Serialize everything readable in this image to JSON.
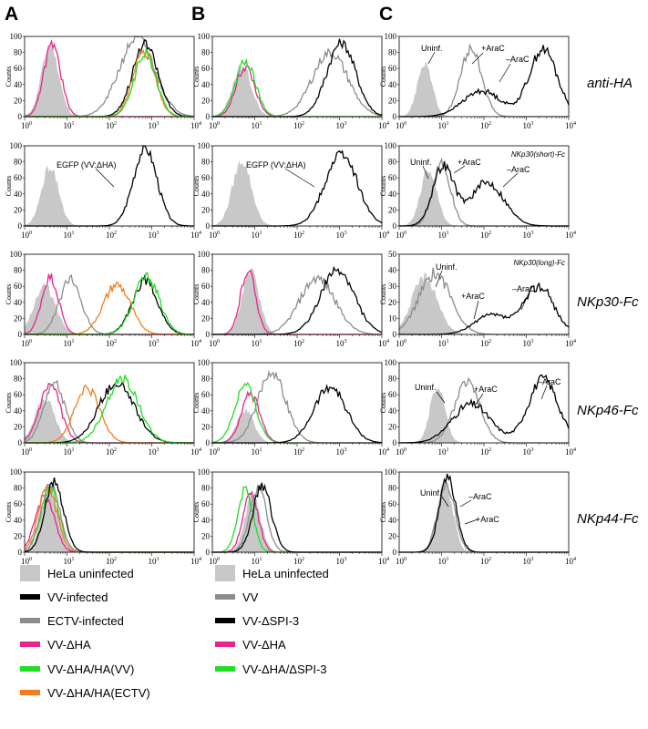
{
  "figure": {
    "panel_letters": [
      "A",
      "B",
      "C"
    ],
    "row_labels": [
      "anti-HA",
      "",
      "NKp30-Fc",
      "NKp46-Fc",
      "NKp44-Fc"
    ],
    "y_axis_label": "Counts",
    "x_tick_labels": [
      "10",
      "10",
      "10",
      "10",
      "10"
    ],
    "x_tick_exponents": [
      "0",
      "1",
      "2",
      "3",
      "4"
    ],
    "inset_labels": {
      "C2": "NKp30(short)-Fc",
      "C3": "NKp30(long)-Fc"
    }
  },
  "colors": {
    "uninfected": "#c8c8c8",
    "vv": "#000000",
    "ectv": "#8c8c8c",
    "vv_dha": "#e6268c",
    "vv_dha_ha_vv": "#22dd22",
    "vv_dha_ha_ectv": "#f47c1c",
    "vv_b": "#8c8c8c",
    "vv_dspi3": "#000000"
  },
  "legend_a": [
    {
      "label": "HeLa uninfected",
      "color": "#c8c8c8"
    },
    {
      "label": "VV-infected",
      "color": "#000000"
    },
    {
      "label": "ECTV-infected",
      "color": "#8c8c8c"
    },
    {
      "label": "VV-ΔHA",
      "color": "#e6268c"
    },
    {
      "label": "VV-ΔHA/HA(VV)",
      "color": "#22dd22"
    },
    {
      "label": "VV-ΔHA/HA(ECTV)",
      "color": "#f47c1c"
    }
  ],
  "legend_b": [
    {
      "label": "HeLa uninfected",
      "color": "#c8c8c8"
    },
    {
      "label": "VV",
      "color": "#8c8c8c"
    },
    {
      "label": "VV-ΔSPI-3",
      "color": "#000000"
    },
    {
      "label": "VV-ΔHA",
      "color": "#e6268c"
    },
    {
      "label": "VV-ΔHA/ΔSPI-3",
      "color": "#22dd22"
    }
  ],
  "annotations": [
    {
      "id": "A2-egfp",
      "text": "EGFP (VV:ΔHA)"
    },
    {
      "id": "B2-egfp",
      "text": "EGFP (VV:ΔHA)"
    },
    {
      "id": "C1-uninf",
      "text": "Uninf."
    },
    {
      "id": "C1-arac-plus",
      "text": "+AraC"
    },
    {
      "id": "C1-arac-minus",
      "text": "–AraC"
    },
    {
      "id": "C2-uninf",
      "text": "Uninf."
    },
    {
      "id": "C2-arac-plus",
      "text": "+AraC"
    },
    {
      "id": "C2-arac-minus",
      "text": "–AraC"
    },
    {
      "id": "C3-uninf",
      "text": "Uninf."
    },
    {
      "id": "C3-arac-plus",
      "text": "+AraC"
    },
    {
      "id": "C3-arac-minus",
      "text": "–AraC"
    },
    {
      "id": "C4-uninf",
      "text": "Uninf."
    },
    {
      "id": "C4-arac-plus",
      "text": "+AraC"
    },
    {
      "id": "C4-arac-minus",
      "text": "–AraC"
    },
    {
      "id": "C5-uninf",
      "text": "Uninf."
    },
    {
      "id": "C5-arac-minus",
      "text": "–AraC"
    },
    {
      "id": "C5-arac-plus",
      "text": "+AraC"
    }
  ],
  "chart_data": [
    {
      "id": "A1",
      "type": "area",
      "xscale": "log",
      "xlim": [
        1,
        10000
      ],
      "ylim": [
        0,
        100
      ],
      "yticks": [
        0,
        20,
        40,
        60,
        80,
        100
      ],
      "series": [
        {
          "key": "uninfected",
          "peak_x": 4,
          "width": 0.2,
          "peak": 88
        },
        {
          "key": "vv_dha",
          "peak_x": 4.5,
          "width": 0.2,
          "peak": 90
        },
        {
          "key": "ectv",
          "peak_x": 450,
          "width": 0.42,
          "peak": 98
        },
        {
          "key": "vv",
          "peak_x": 700,
          "width": 0.3,
          "peak": 90
        },
        {
          "key": "vv_dha_ha_ectv",
          "peak_x": 650,
          "width": 0.26,
          "peak": 82
        },
        {
          "key": "vv_dha_ha_vv",
          "peak_x": 700,
          "width": 0.26,
          "peak": 78
        }
      ]
    },
    {
      "id": "B1",
      "type": "area",
      "xscale": "log",
      "xlim": [
        1,
        10000
      ],
      "ylim": [
        0,
        100
      ],
      "yticks": [
        0,
        20,
        40,
        60,
        80,
        100
      ],
      "series": [
        {
          "key": "uninfected",
          "peak_x": 5,
          "width": 0.22,
          "peak": 62
        },
        {
          "key": "vv_dha",
          "peak_x": 6,
          "width": 0.22,
          "peak": 62
        },
        {
          "key": "vv_dha_ha_vv",
          "peak_x": 6,
          "width": 0.24,
          "peak": 68
        },
        {
          "key": "vv_b",
          "peak_x": 600,
          "width": 0.42,
          "peak": 80
        },
        {
          "key": "vv_dspi3",
          "peak_x": 1100,
          "width": 0.34,
          "peak": 92
        }
      ]
    },
    {
      "id": "C1",
      "type": "area",
      "xscale": "log",
      "xlim": [
        1,
        10000
      ],
      "ylim": [
        0,
        100
      ],
      "yticks": [
        0,
        20,
        40,
        60,
        80,
        100
      ],
      "series": [
        {
          "key": "uninfected",
          "peak_x": 4,
          "width": 0.17,
          "peak": 66
        },
        {
          "key": "vv_b",
          "peak_x": 50,
          "width": 0.25,
          "peak": 85
        },
        {
          "key": "vv",
          "peak_x": 2500,
          "width": 0.33,
          "peak": 84,
          "extra": {
            "x": 90,
            "peak": 32,
            "width": 0.45
          }
        }
      ]
    },
    {
      "id": "A2",
      "type": "area",
      "xscale": "log",
      "xlim": [
        1,
        10000
      ],
      "ylim": [
        0,
        100
      ],
      "yticks": [
        0,
        20,
        40,
        60,
        80,
        100
      ],
      "series": [
        {
          "key": "uninfected",
          "peak_x": 4,
          "width": 0.2,
          "peak": 73
        },
        {
          "key": "vv",
          "peak_x": 700,
          "width": 0.28,
          "peak": 97
        }
      ]
    },
    {
      "id": "B2",
      "type": "area",
      "xscale": "log",
      "xlim": [
        1,
        10000
      ],
      "ylim": [
        0,
        100
      ],
      "yticks": [
        0,
        20,
        40,
        60,
        80,
        100
      ],
      "series": [
        {
          "key": "uninfected",
          "peak_x": 5,
          "width": 0.22,
          "peak": 80
        },
        {
          "key": "vv",
          "peak_x": 1100,
          "width": 0.38,
          "peak": 90
        }
      ]
    },
    {
      "id": "C2",
      "type": "area",
      "xscale": "log",
      "xlim": [
        1,
        10000
      ],
      "ylim": [
        0,
        100
      ],
      "yticks": [
        0,
        20,
        40,
        60,
        80,
        100
      ],
      "series": [
        {
          "key": "uninfected",
          "peak_x": 5,
          "width": 0.19,
          "peak": 70
        },
        {
          "key": "vv_b",
          "peak_x": 10,
          "width": 0.21,
          "peak": 78
        },
        {
          "key": "vv",
          "peak_x": 11,
          "width": 0.25,
          "peak": 74,
          "extra": {
            "x": 120,
            "peak": 54,
            "width": 0.4
          }
        }
      ]
    },
    {
      "id": "A3",
      "type": "area",
      "xscale": "log",
      "xlim": [
        1,
        10000
      ],
      "ylim": [
        0,
        100
      ],
      "yticks": [
        0,
        20,
        40,
        60,
        80,
        100
      ],
      "series": [
        {
          "key": "uninfected",
          "peak_x": 3,
          "width": 0.25,
          "peak": 60
        },
        {
          "key": "vv_dha",
          "peak_x": 4,
          "width": 0.2,
          "peak": 72
        },
        {
          "key": "ectv",
          "peak_x": 12,
          "width": 0.26,
          "peak": 68
        },
        {
          "key": "vv_dha_ha_ectv",
          "peak_x": 150,
          "width": 0.32,
          "peak": 62
        },
        {
          "key": "vv",
          "peak_x": 700,
          "width": 0.3,
          "peak": 67
        },
        {
          "key": "vv_dha_ha_vv",
          "peak_x": 750,
          "width": 0.3,
          "peak": 72
        }
      ]
    },
    {
      "id": "B3",
      "type": "area",
      "xscale": "log",
      "xlim": [
        1,
        10000
      ],
      "ylim": [
        0,
        100
      ],
      "yticks": [
        0,
        20,
        40,
        60,
        80,
        100
      ],
      "series": [
        {
          "key": "uninfected",
          "peak_x": 8,
          "width": 0.2,
          "peak": 78
        },
        {
          "key": "vv_dha",
          "peak_x": 7,
          "width": 0.18,
          "peak": 80
        },
        {
          "key": "vv_b",
          "peak_x": 300,
          "width": 0.42,
          "peak": 70
        },
        {
          "key": "vv_dspi3",
          "peak_x": 900,
          "width": 0.4,
          "peak": 80
        }
      ]
    },
    {
      "id": "C3",
      "type": "area",
      "xscale": "log",
      "xlim": [
        1,
        10000
      ],
      "ylim": [
        0,
        50
      ],
      "yticks": [
        0,
        10,
        20,
        30,
        40,
        50
      ],
      "series": [
        {
          "key": "uninfected",
          "peak_x": 4,
          "width": 0.3,
          "peak": 35
        },
        {
          "key": "vv_b",
          "peak_x": 7,
          "width": 0.38,
          "peak": 38
        },
        {
          "key": "vv",
          "peak_x": 2000,
          "width": 0.35,
          "peak": 30,
          "extra": {
            "x": 150,
            "peak": 12,
            "width": 0.4
          }
        }
      ]
    },
    {
      "id": "A4",
      "type": "area",
      "xscale": "log",
      "xlim": [
        1,
        10000
      ],
      "ylim": [
        0,
        100
      ],
      "yticks": [
        0,
        20,
        40,
        60,
        80,
        100
      ],
      "series": [
        {
          "key": "uninfected",
          "peak_x": 3,
          "width": 0.23,
          "peak": 55
        },
        {
          "key": "vv_dha",
          "peak_x": 4,
          "width": 0.25,
          "peak": 70
        },
        {
          "key": "ectv",
          "peak_x": 5,
          "width": 0.25,
          "peak": 75
        },
        {
          "key": "vv_dha_ha_ectv",
          "peak_x": 30,
          "width": 0.3,
          "peak": 68
        },
        {
          "key": "vv",
          "peak_x": 150,
          "width": 0.42,
          "peak": 75
        },
        {
          "key": "vv_dha_ha_vv",
          "peak_x": 200,
          "width": 0.38,
          "peak": 80
        }
      ]
    },
    {
      "id": "B4",
      "type": "area",
      "xscale": "log",
      "xlim": [
        1,
        10000
      ],
      "ylim": [
        0,
        100
      ],
      "yticks": [
        0,
        20,
        40,
        60,
        80,
        100
      ],
      "series": [
        {
          "key": "uninfected",
          "peak_x": 6,
          "width": 0.2,
          "peak": 40
        },
        {
          "key": "vv_dha",
          "peak_x": 8,
          "width": 0.22,
          "peak": 60
        },
        {
          "key": "vv_dha_ha_vv",
          "peak_x": 6,
          "width": 0.25,
          "peak": 72
        },
        {
          "key": "vv_b",
          "peak_x": 25,
          "width": 0.33,
          "peak": 88
        },
        {
          "key": "vv_dspi3",
          "peak_x": 600,
          "width": 0.38,
          "peak": 70
        }
      ]
    },
    {
      "id": "C4",
      "type": "area",
      "xscale": "log",
      "xlim": [
        1,
        10000
      ],
      "ylim": [
        0,
        100
      ],
      "yticks": [
        0,
        20,
        40,
        60,
        80,
        100
      ],
      "series": [
        {
          "key": "uninfected",
          "peak_x": 8,
          "width": 0.17,
          "peak": 70
        },
        {
          "key": "vv_b",
          "peak_x": 40,
          "width": 0.3,
          "peak": 75
        },
        {
          "key": "vv",
          "peak_x": 2500,
          "width": 0.35,
          "peak": 80,
          "extra": {
            "x": 50,
            "peak": 48,
            "width": 0.45
          }
        }
      ]
    },
    {
      "id": "A5",
      "type": "area",
      "xscale": "log",
      "xlim": [
        1,
        10000
      ],
      "ylim": [
        0,
        100
      ],
      "yticks": [
        0,
        20,
        40,
        60,
        80,
        100
      ],
      "series": [
        {
          "key": "uninfected",
          "peak_x": 4,
          "width": 0.2,
          "peak": 80
        },
        {
          "key": "vv_dha",
          "peak_x": 3,
          "width": 0.22,
          "peak": 70
        },
        {
          "key": "vv_dha_ha_vv",
          "peak_x": 4,
          "width": 0.22,
          "peak": 78
        },
        {
          "key": "vv_dha_ha_ectv",
          "peak_x": 3.5,
          "width": 0.22,
          "peak": 82
        },
        {
          "key": "ectv",
          "peak_x": 4,
          "width": 0.22,
          "peak": 86
        },
        {
          "key": "vv",
          "peak_x": 5,
          "width": 0.22,
          "peak": 88
        }
      ]
    },
    {
      "id": "B5",
      "type": "area",
      "xscale": "log",
      "xlim": [
        1,
        10000
      ],
      "ylim": [
        0,
        100
      ],
      "yticks": [
        0,
        20,
        40,
        60,
        80,
        100
      ],
      "series": [
        {
          "key": "uninfected",
          "peak_x": 9,
          "width": 0.18,
          "peak": 70
        },
        {
          "key": "vv_dha",
          "peak_x": 8,
          "width": 0.18,
          "peak": 75
        },
        {
          "key": "vv_dha_ha_vv",
          "peak_x": 6,
          "width": 0.18,
          "peak": 78
        },
        {
          "key": "vv_b",
          "peak_x": 12,
          "width": 0.2,
          "peak": 80
        },
        {
          "key": "vv_dspi3",
          "peak_x": 15,
          "width": 0.22,
          "peak": 82
        }
      ]
    },
    {
      "id": "C5",
      "type": "area",
      "xscale": "log",
      "xlim": [
        1,
        10000
      ],
      "ylim": [
        0,
        100
      ],
      "yticks": [
        0,
        20,
        40,
        60,
        80,
        100
      ],
      "series": [
        {
          "key": "uninfected",
          "peak_x": 12,
          "width": 0.18,
          "peak": 85
        },
        {
          "key": "vv_b",
          "peak_x": 13,
          "width": 0.2,
          "peak": 85
        },
        {
          "key": "vv",
          "peak_x": 14,
          "width": 0.2,
          "peak": 92
        }
      ]
    }
  ]
}
